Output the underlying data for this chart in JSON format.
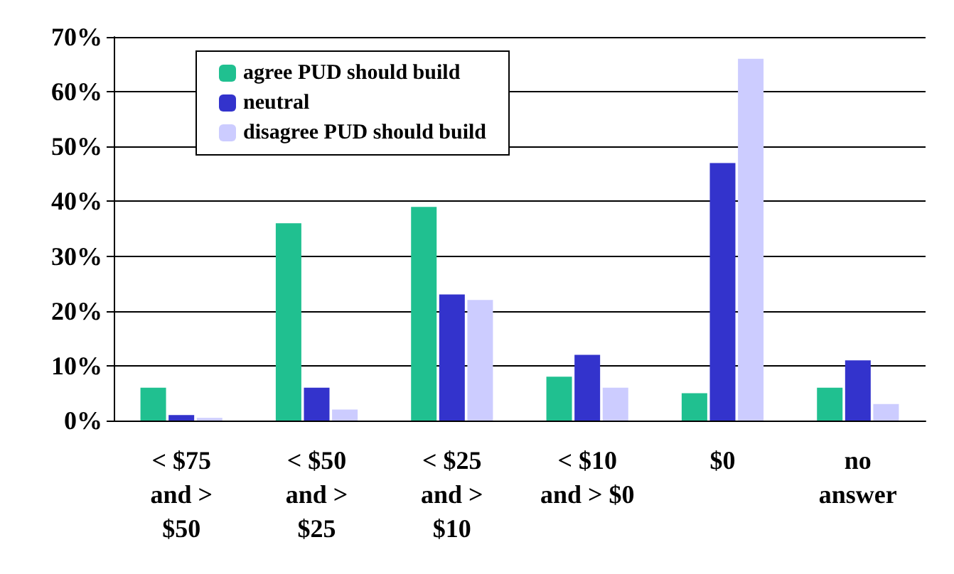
{
  "chart_data": {
    "type": "bar",
    "categories": [
      "< $75\nand >\n$50",
      "< $50\nand >\n$25",
      "< $25\nand >\n$10",
      "< $10\nand > $0",
      "$0",
      "no\nanswer"
    ],
    "series": [
      {
        "name": "agree PUD should build",
        "color": "#20c090",
        "values": [
          6,
          36,
          39,
          8,
          5,
          6
        ]
      },
      {
        "name": "neutral",
        "color": "#3333cc",
        "values": [
          1,
          6,
          23,
          12,
          47,
          11
        ]
      },
      {
        "name": "disagree PUD should build",
        "color": "#ccccff",
        "values": [
          0.5,
          2,
          22,
          6,
          66,
          3
        ]
      }
    ],
    "ylim": [
      0,
      70
    ],
    "yticks": [
      {
        "value": 0,
        "label": "0%"
      },
      {
        "value": 10,
        "label": "10%"
      },
      {
        "value": 20,
        "label": "20%"
      },
      {
        "value": 30,
        "label": "30%"
      },
      {
        "value": 40,
        "label": "40%"
      },
      {
        "value": 50,
        "label": "50%"
      },
      {
        "value": 60,
        "label": "60%"
      },
      {
        "value": 70,
        "label": "70%"
      }
    ],
    "grid": "y",
    "legend": "top"
  }
}
